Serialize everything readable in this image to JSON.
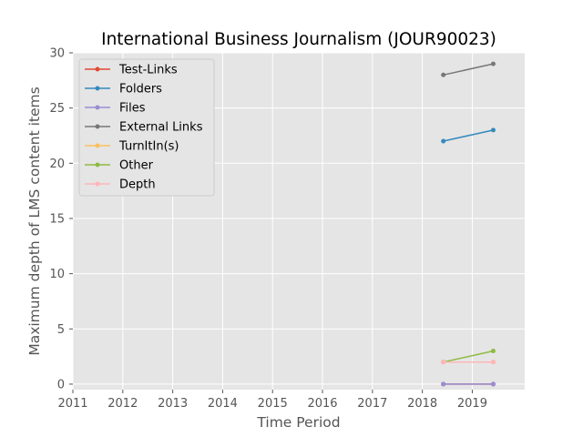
{
  "chart_data": {
    "type": "line",
    "title": "International Business Journalism (JOUR90023)",
    "xlabel": "Time Period",
    "ylabel": "Maximum depth of LMS content items",
    "xlim": [
      2011,
      2020.05
    ],
    "ylim": [
      -0.5,
      30
    ],
    "xticks": [
      "2011",
      "2012",
      "2013",
      "2014",
      "2015",
      "2016",
      "2017",
      "2018",
      "2019"
    ],
    "yticks": [
      "0",
      "5",
      "10",
      "15",
      "20",
      "25",
      "30"
    ],
    "grid": true,
    "legend_position": "top-left",
    "x": [
      2018.42,
      2019.42
    ],
    "series": [
      {
        "name": "Test-Links",
        "color": "#e24a33",
        "values": [
          0,
          0
        ]
      },
      {
        "name": "Folders",
        "color": "#348abd",
        "values": [
          22,
          23
        ]
      },
      {
        "name": "Files",
        "color": "#988ed5",
        "values": [
          0,
          0
        ]
      },
      {
        "name": "External Links",
        "color": "#777777",
        "values": [
          28,
          29
        ]
      },
      {
        "name": "TurnItIn(s)",
        "color": "#fbc15e",
        "values": [
          2,
          2
        ]
      },
      {
        "name": "Other",
        "color": "#8eba42",
        "values": [
          2,
          3
        ]
      },
      {
        "name": "Depth",
        "color": "#ffb5b8",
        "values": [
          2,
          2
        ]
      }
    ]
  }
}
